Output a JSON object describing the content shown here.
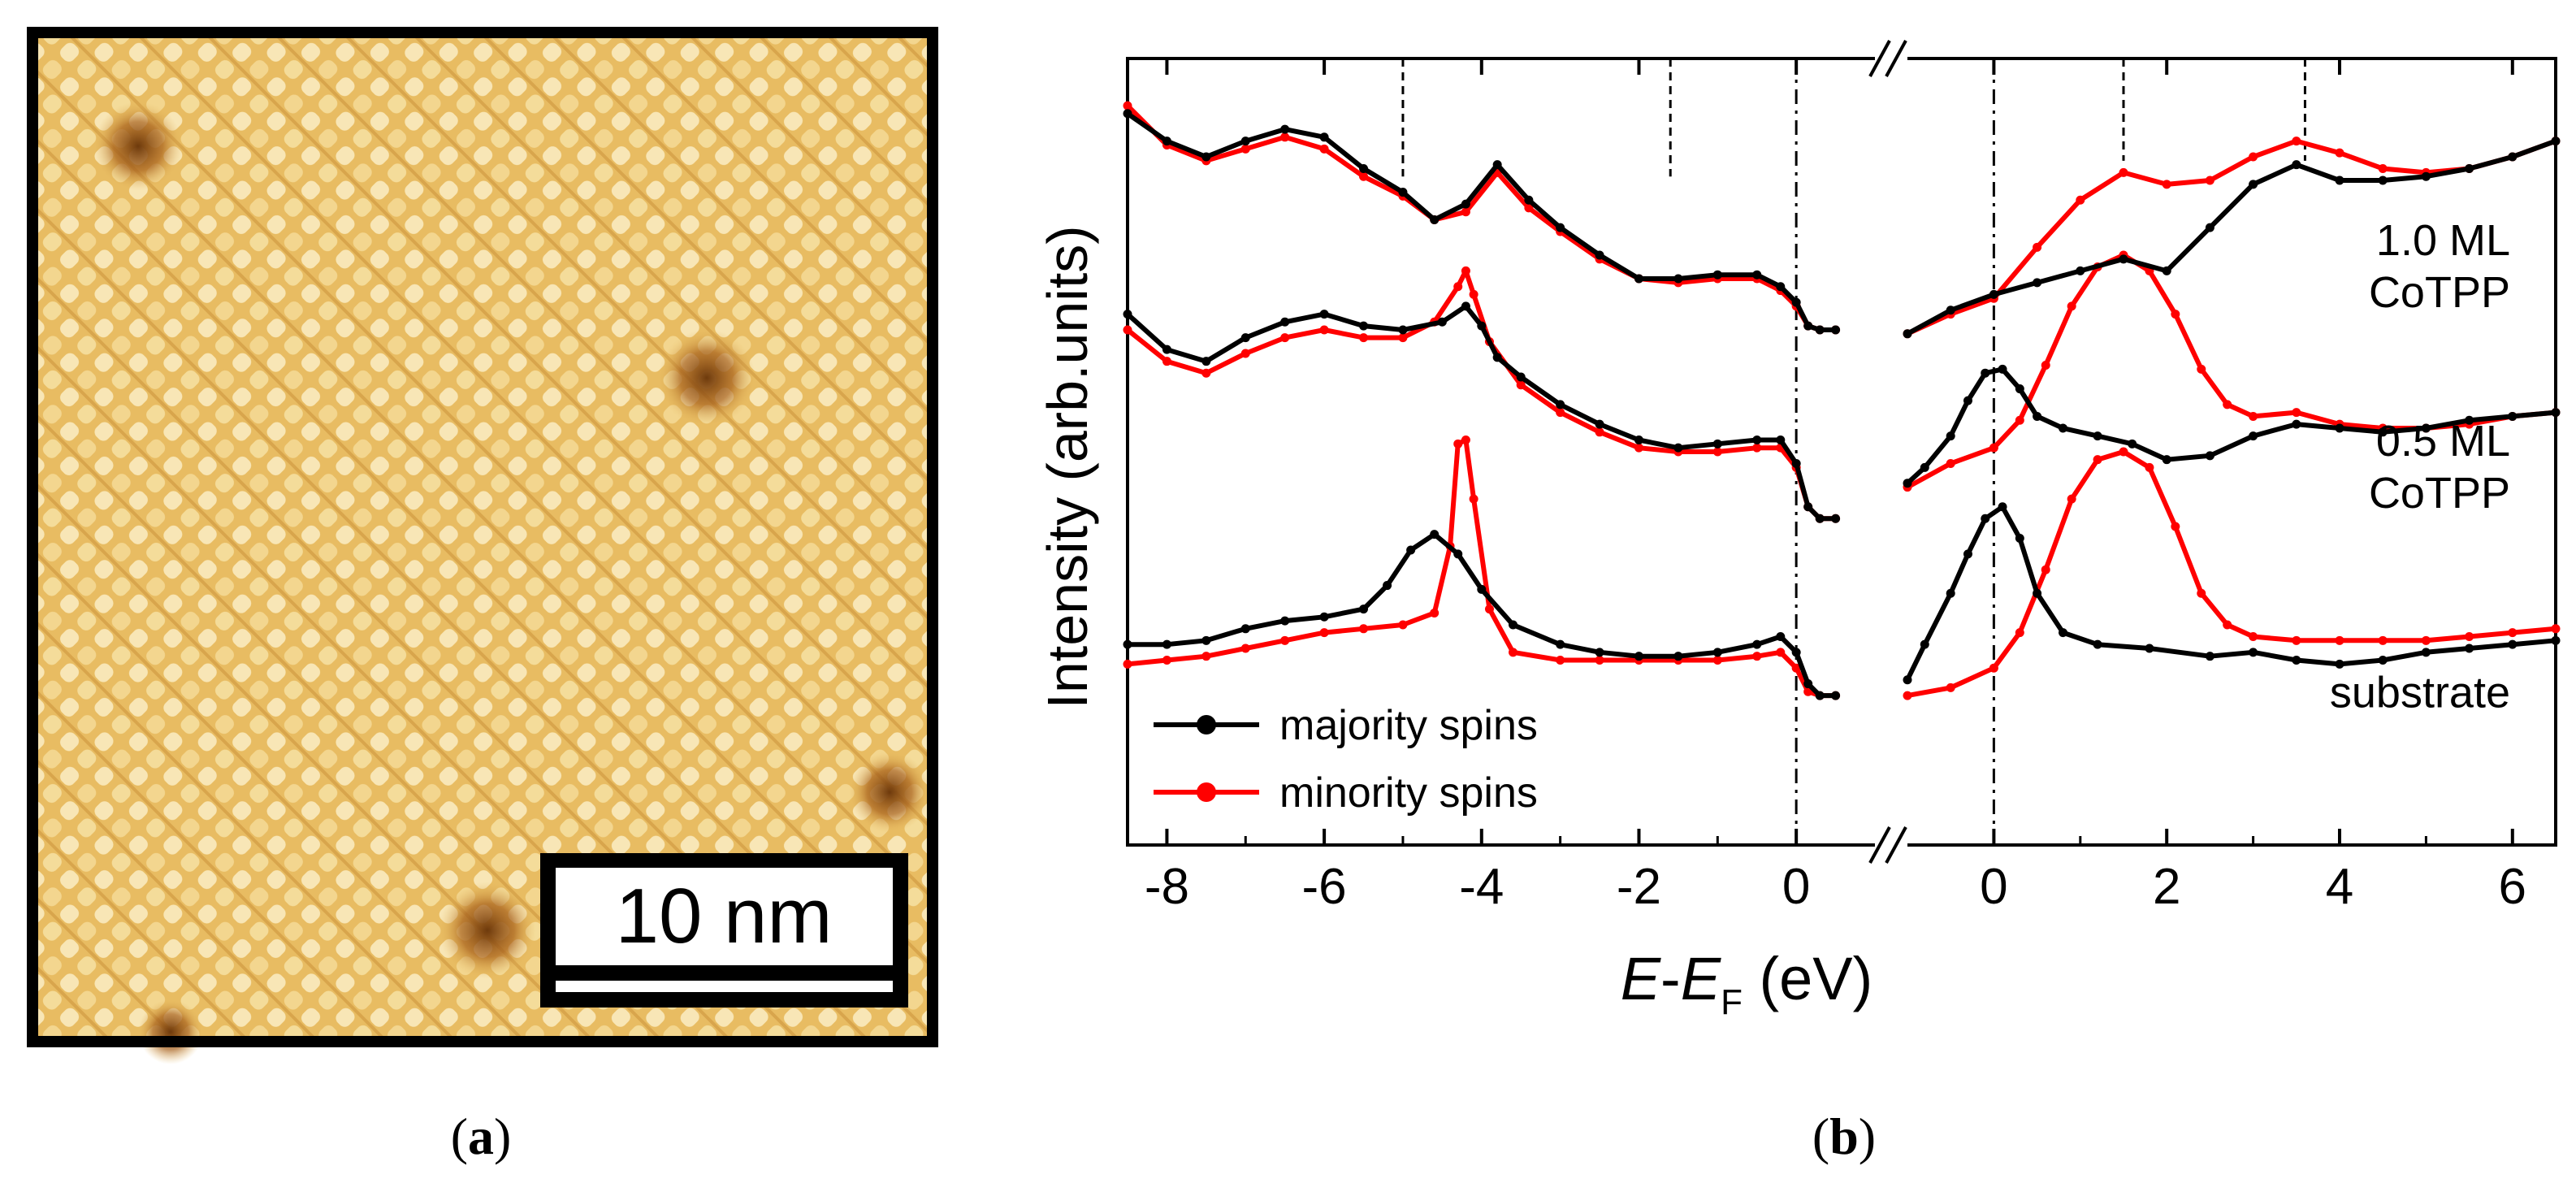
{
  "panel_a": {
    "label": "a",
    "scale_bar": "10 nm",
    "image_colors": {
      "base": "#e8bc62",
      "light": "#fbeec4",
      "dark": "#8a4a12"
    }
  },
  "panel_b": {
    "label": "b"
  },
  "chart_data": {
    "type": "line",
    "ylabel": "Intensity (arb.units)",
    "xlabel_main": "E",
    "xlabel_dash": "-",
    "xlabel_sub_base": "E",
    "xlabel_sub": "F",
    "xlabel_unit": " (eV)",
    "x_axis_broken": true,
    "xlim_left": [
      -8.5,
      1.0
    ],
    "xlim_right": [
      -1.0,
      6.5
    ],
    "xticks_left": [
      -8,
      -6,
      -4,
      -2,
      0
    ],
    "xticks_right": [
      0,
      2,
      4,
      6
    ],
    "ylim": [
      0,
      10
    ],
    "left_dashed_markers": [
      -5.0,
      -1.6
    ],
    "right_dashed_markers": [
      1.5,
      3.6
    ],
    "fermi_lines": [
      0
    ],
    "legend": {
      "position": "bottom-left",
      "entries": [
        "majority spins",
        "minority spins"
      ]
    },
    "colors": {
      "majority": "#000000",
      "minority": "#ff0000"
    },
    "curve_labels": [
      {
        "lines": [
          "1.0 ML",
          "CoTPP"
        ],
        "y": 7.5
      },
      {
        "lines": [
          "0.5 ML",
          "CoTPP"
        ],
        "y": 4.95
      },
      {
        "lines": [
          "substrate"
        ],
        "y": 1.75
      }
    ],
    "series": [
      {
        "group": "1.0 ML CoTPP",
        "name": "majority spins",
        "side": "left",
        "x": [
          -8.5,
          -8.0,
          -7.5,
          -7.0,
          -6.5,
          -6.0,
          -5.5,
          -5.0,
          -4.6,
          -4.2,
          -3.8,
          -3.4,
          -3.0,
          -2.5,
          -2.0,
          -1.5,
          -1.0,
          -0.5,
          -0.2,
          0.0,
          0.15,
          0.3,
          0.5
        ],
        "y": [
          9.3,
          8.95,
          8.75,
          8.95,
          9.1,
          9.0,
          8.6,
          8.3,
          7.95,
          8.15,
          8.65,
          8.2,
          7.85,
          7.5,
          7.2,
          7.2,
          7.25,
          7.25,
          7.1,
          6.9,
          6.6,
          6.55,
          6.55
        ]
      },
      {
        "group": "1.0 ML CoTPP",
        "name": "minority spins",
        "side": "left",
        "x": [
          -8.5,
          -8.0,
          -7.5,
          -7.0,
          -6.5,
          -6.0,
          -5.5,
          -5.0,
          -4.6,
          -4.2,
          -3.8,
          -3.4,
          -3.0,
          -2.5,
          -2.0,
          -1.5,
          -1.0,
          -0.5,
          -0.2,
          0.0,
          0.15,
          0.3,
          0.5
        ],
        "y": [
          9.4,
          8.9,
          8.7,
          8.85,
          9.0,
          8.85,
          8.5,
          8.25,
          7.95,
          8.05,
          8.55,
          8.1,
          7.8,
          7.45,
          7.2,
          7.15,
          7.2,
          7.2,
          7.05,
          6.85,
          6.6,
          6.55,
          6.55
        ]
      },
      {
        "group": "1.0 ML CoTPP",
        "name": "majority spins",
        "side": "right",
        "x": [
          -1.0,
          -0.5,
          0.0,
          0.5,
          1.0,
          1.5,
          2.0,
          2.5,
          3.0,
          3.5,
          4.0,
          4.5,
          5.0,
          5.5,
          6.0,
          6.5
        ],
        "y": [
          6.5,
          6.8,
          7.0,
          7.15,
          7.3,
          7.45,
          7.3,
          7.85,
          8.4,
          8.65,
          8.45,
          8.45,
          8.5,
          8.6,
          8.75,
          8.95
        ]
      },
      {
        "group": "1.0 ML CoTPP",
        "name": "minority spins",
        "side": "right",
        "x": [
          -1.0,
          -0.5,
          0.0,
          0.5,
          1.0,
          1.5,
          2.0,
          2.5,
          3.0,
          3.5,
          4.0,
          4.5,
          5.0,
          5.5,
          6.0,
          6.5
        ],
        "y": [
          6.5,
          6.75,
          6.95,
          7.6,
          8.2,
          8.55,
          8.4,
          8.45,
          8.75,
          8.95,
          8.8,
          8.6,
          8.55,
          8.6,
          8.75,
          8.95
        ]
      },
      {
        "group": "0.5 ML CoTPP",
        "name": "majority spins",
        "side": "left",
        "x": [
          -8.5,
          -8.0,
          -7.5,
          -7.0,
          -6.5,
          -6.0,
          -5.5,
          -5.0,
          -4.5,
          -4.2,
          -4.0,
          -3.8,
          -3.5,
          -3.0,
          -2.5,
          -2.0,
          -1.5,
          -1.0,
          -0.5,
          -0.2,
          0.0,
          0.15,
          0.3,
          0.5
        ],
        "y": [
          6.75,
          6.3,
          6.15,
          6.45,
          6.65,
          6.75,
          6.6,
          6.55,
          6.65,
          6.85,
          6.6,
          6.2,
          5.95,
          5.6,
          5.35,
          5.15,
          5.05,
          5.1,
          5.15,
          5.15,
          4.85,
          4.3,
          4.15,
          4.15
        ]
      },
      {
        "group": "0.5 ML CoTPP",
        "name": "minority spins",
        "side": "left",
        "x": [
          -8.5,
          -8.0,
          -7.5,
          -7.0,
          -6.5,
          -6.0,
          -5.5,
          -5.0,
          -4.6,
          -4.3,
          -4.2,
          -4.1,
          -3.9,
          -3.5,
          -3.0,
          -2.5,
          -2.0,
          -1.5,
          -1.0,
          -0.5,
          -0.2,
          0.0,
          0.15,
          0.3,
          0.5
        ],
        "y": [
          6.55,
          6.15,
          6.0,
          6.25,
          6.45,
          6.55,
          6.45,
          6.45,
          6.65,
          7.1,
          7.3,
          7.0,
          6.4,
          5.85,
          5.5,
          5.25,
          5.05,
          5.0,
          5.0,
          5.05,
          5.05,
          4.8,
          4.3,
          4.15,
          4.15
        ]
      },
      {
        "group": "0.5 ML CoTPP",
        "name": "majority spins",
        "side": "right",
        "x": [
          -1.0,
          -0.8,
          -0.5,
          -0.3,
          -0.1,
          0.1,
          0.3,
          0.5,
          0.8,
          1.2,
          1.6,
          2.0,
          2.5,
          3.0,
          3.5,
          4.0,
          4.5,
          5.0,
          5.5,
          6.0,
          6.5
        ],
        "y": [
          4.6,
          4.8,
          5.2,
          5.65,
          6.0,
          6.05,
          5.8,
          5.45,
          5.3,
          5.2,
          5.1,
          4.9,
          4.95,
          5.2,
          5.35,
          5.3,
          5.25,
          5.3,
          5.4,
          5.45,
          5.5
        ]
      },
      {
        "group": "0.5 ML CoTPP",
        "name": "minority spins",
        "side": "right",
        "x": [
          -1.0,
          -0.5,
          0.0,
          0.3,
          0.6,
          0.9,
          1.2,
          1.5,
          1.8,
          2.1,
          2.4,
          2.7,
          3.0,
          3.5,
          4.0,
          4.5,
          5.0,
          5.5,
          6.0,
          6.5
        ],
        "y": [
          4.55,
          4.85,
          5.05,
          5.4,
          6.1,
          6.85,
          7.35,
          7.5,
          7.3,
          6.75,
          6.05,
          5.6,
          5.45,
          5.5,
          5.35,
          5.3,
          5.3,
          5.35,
          5.45,
          5.5
        ]
      },
      {
        "group": "substrate",
        "name": "majority spins",
        "side": "left",
        "x": [
          -8.5,
          -8.0,
          -7.5,
          -7.0,
          -6.5,
          -6.0,
          -5.5,
          -5.2,
          -4.9,
          -4.6,
          -4.3,
          -4.0,
          -3.6,
          -3.0,
          -2.5,
          -2.0,
          -1.5,
          -1.0,
          -0.5,
          -0.2,
          0.0,
          0.15,
          0.3,
          0.5
        ],
        "y": [
          2.55,
          2.55,
          2.6,
          2.75,
          2.85,
          2.9,
          3.0,
          3.3,
          3.75,
          3.95,
          3.7,
          3.25,
          2.8,
          2.55,
          2.45,
          2.4,
          2.4,
          2.45,
          2.55,
          2.65,
          2.45,
          2.05,
          1.9,
          1.9
        ]
      },
      {
        "group": "substrate",
        "name": "minority spins",
        "side": "left",
        "x": [
          -8.5,
          -8.0,
          -7.5,
          -7.0,
          -6.5,
          -6.0,
          -5.5,
          -5.0,
          -4.6,
          -4.4,
          -4.3,
          -4.2,
          -4.1,
          -3.9,
          -3.6,
          -3.0,
          -2.5,
          -2.0,
          -1.5,
          -1.0,
          -0.5,
          -0.2,
          0.0,
          0.15,
          0.3,
          0.5
        ],
        "y": [
          2.3,
          2.35,
          2.4,
          2.5,
          2.6,
          2.7,
          2.75,
          2.8,
          2.95,
          3.8,
          5.1,
          5.15,
          4.4,
          3.0,
          2.45,
          2.35,
          2.35,
          2.35,
          2.35,
          2.35,
          2.4,
          2.45,
          2.25,
          1.95,
          1.9,
          1.9
        ]
      },
      {
        "group": "substrate",
        "name": "majority spins",
        "side": "right",
        "x": [
          -1.0,
          -0.8,
          -0.5,
          -0.3,
          -0.1,
          0.1,
          0.3,
          0.5,
          0.8,
          1.2,
          1.8,
          2.5,
          3.0,
          3.5,
          4.0,
          4.5,
          5.0,
          5.5,
          6.0,
          6.5
        ],
        "y": [
          2.1,
          2.55,
          3.2,
          3.7,
          4.15,
          4.3,
          3.9,
          3.2,
          2.7,
          2.55,
          2.5,
          2.4,
          2.45,
          2.35,
          2.3,
          2.35,
          2.45,
          2.5,
          2.55,
          2.6
        ]
      },
      {
        "group": "substrate",
        "name": "minority spins",
        "side": "right",
        "x": [
          -1.0,
          -0.5,
          0.0,
          0.3,
          0.6,
          0.9,
          1.2,
          1.5,
          1.8,
          2.1,
          2.4,
          2.7,
          3.0,
          3.5,
          4.0,
          4.5,
          5.0,
          5.5,
          6.0,
          6.5
        ],
        "y": [
          1.9,
          2.0,
          2.25,
          2.7,
          3.5,
          4.4,
          4.9,
          5.0,
          4.8,
          4.05,
          3.2,
          2.8,
          2.65,
          2.6,
          2.6,
          2.6,
          2.6,
          2.65,
          2.7,
          2.75
        ]
      }
    ]
  }
}
